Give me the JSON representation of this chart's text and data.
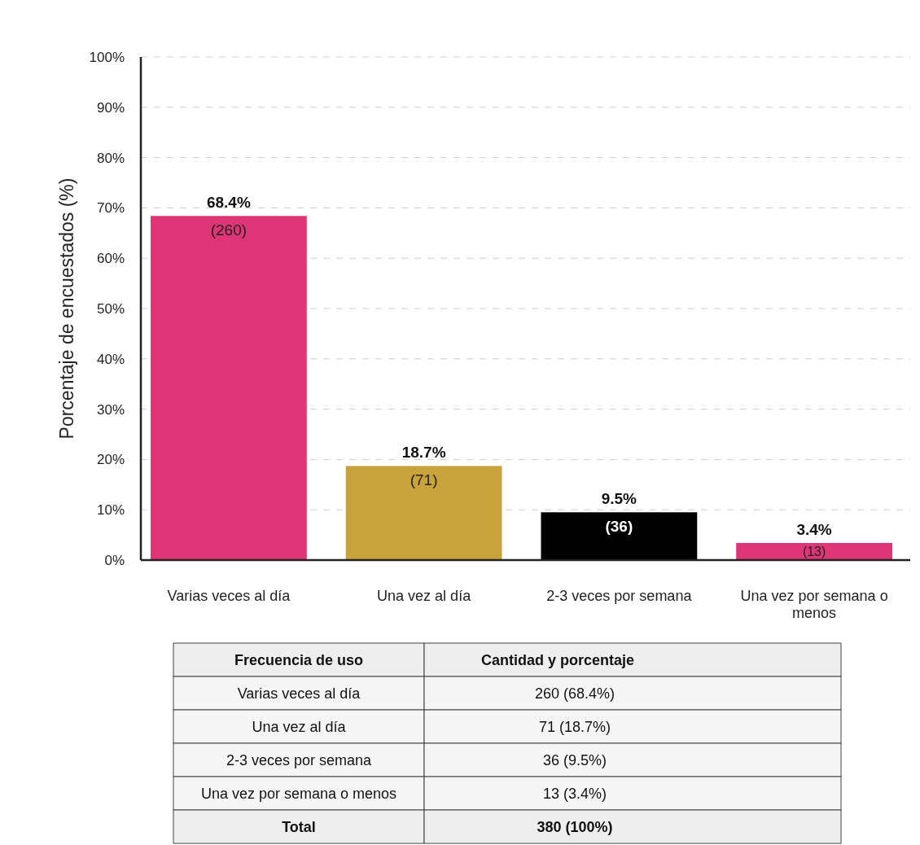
{
  "chart_data": {
    "type": "bar",
    "ylabel": "Porcentaje de encuestados (%)",
    "categories": [
      "Varias veces al día",
      "Una vez al día",
      "2-3 veces por semana",
      "Una vez por semana o menos"
    ],
    "values": [
      68.4,
      18.7,
      9.5,
      3.4
    ],
    "colors": [
      "#dd3575",
      "#c8a33c",
      "#000000",
      "#dd3575"
    ],
    "value_labels": [
      "68.4%",
      "18.7%",
      "9.5%",
      "3.4%"
    ],
    "ylim": [
      0,
      100
    ],
    "yticks": [
      {
        "value": 0,
        "label": "0%"
      },
      {
        "value": 10,
        "label": "10%"
      },
      {
        "value": 20,
        "label": "20%"
      },
      {
        "value": 30,
        "label": "30%"
      },
      {
        "value": 40,
        "label": "40%"
      },
      {
        "value": 50,
        "label": "50%"
      },
      {
        "value": 60,
        "label": "60%"
      },
      {
        "value": 70,
        "label": "70%"
      },
      {
        "value": 80,
        "label": "80%"
      },
      {
        "value": 90,
        "label": "90%"
      },
      {
        "value": 100,
        "label": "100%"
      }
    ],
    "grid": "y",
    "annotations": [
      "(260)",
      "(71)",
      "(36)",
      "(13)",
      "Frecuencia de uso",
      "Cantidad y porcentaje",
      "260 (68.4%)",
      "71 (18.7%)",
      "36 (9.5%)",
      "13 (3.4%)",
      "Total",
      "380 (100%)"
    ]
  }
}
